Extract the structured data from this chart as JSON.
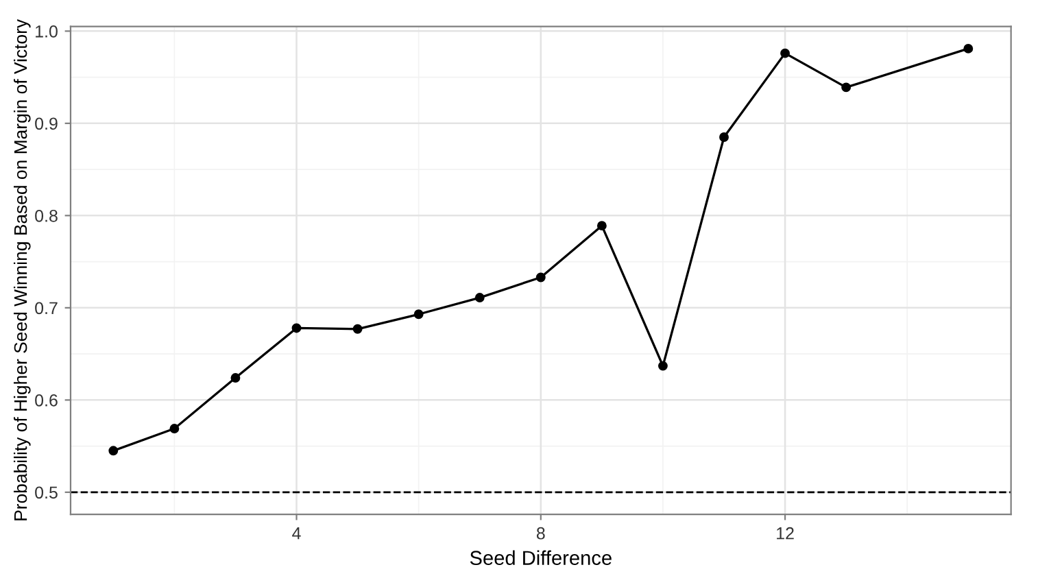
{
  "chart_data": {
    "type": "line",
    "xlabel": "Seed Difference",
    "ylabel": "Probability of Higher Seed Winning Based on Margin of Victory",
    "x": [
      1,
      2,
      3,
      4,
      5,
      6,
      7,
      8,
      9,
      10,
      11,
      12,
      13,
      15
    ],
    "series": [
      {
        "color": "#000000",
        "values": [
          0.545,
          0.569,
          0.624,
          0.678,
          0.677,
          0.693,
          0.711,
          0.733,
          0.789,
          0.637,
          0.885,
          0.976,
          0.939,
          0.981
        ]
      }
    ],
    "marker": "circle",
    "line_style": "solid",
    "xlim": [
      0.3,
      15.7
    ],
    "ylim": [
      0.476,
      1.005
    ],
    "xticks": [
      4,
      8,
      12
    ],
    "yticks": [
      0.5,
      0.6,
      0.7,
      0.8,
      0.9,
      {
        "value": 1.0,
        "label": "1.0"
      }
    ],
    "ref_lines": [
      {
        "axis": "y",
        "value": 0.5,
        "color": "#000000",
        "line_style": "dashed"
      }
    ],
    "grid": true,
    "legend": false
  }
}
